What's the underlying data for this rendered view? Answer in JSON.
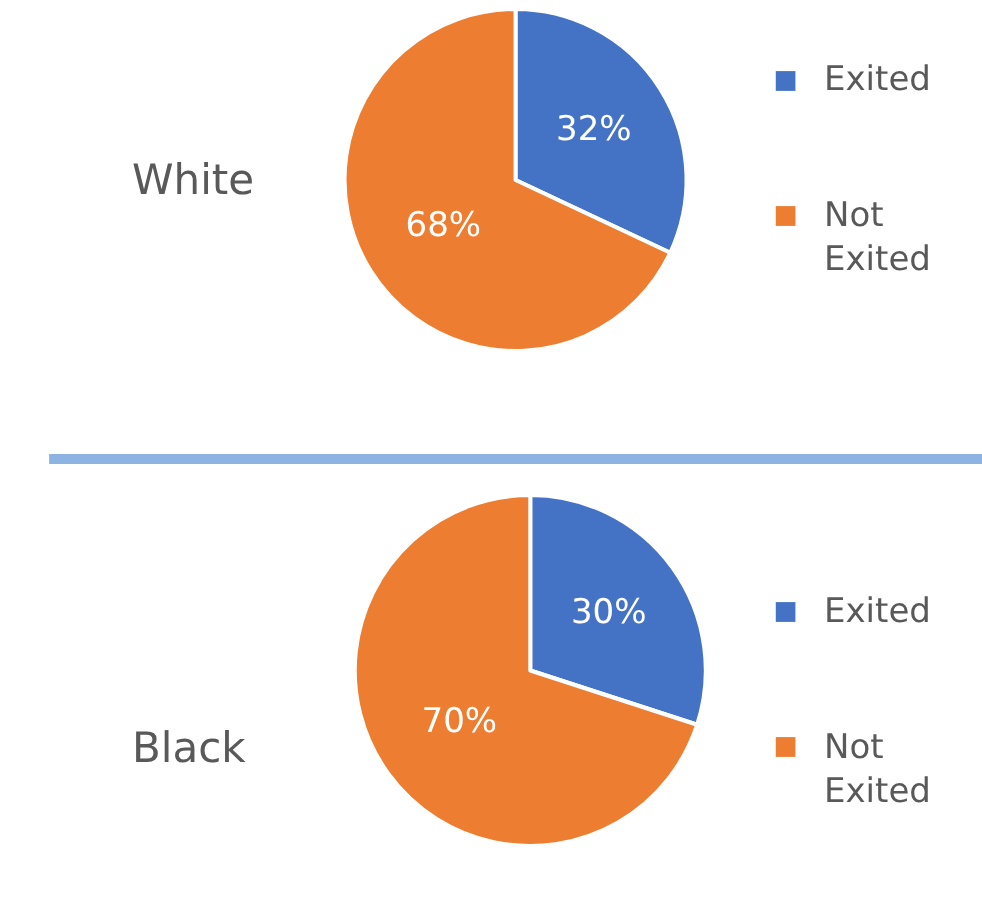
{
  "chart_data": [
    {
      "type": "pie",
      "title": "White",
      "categories": [
        "Exited",
        "Not Exited"
      ],
      "values": [
        32,
        68
      ],
      "colors": [
        "#4472c4",
        "#ed7d31"
      ],
      "value_labels": [
        "32%",
        "68%"
      ],
      "legend": "right"
    },
    {
      "type": "pie",
      "title": "Black",
      "categories": [
        "Exited",
        "Not Exited"
      ],
      "values": [
        30,
        70
      ],
      "colors": [
        "#4472c4",
        "#ed7d31"
      ],
      "value_labels": [
        "30%",
        "70%"
      ],
      "legend": "right"
    }
  ]
}
